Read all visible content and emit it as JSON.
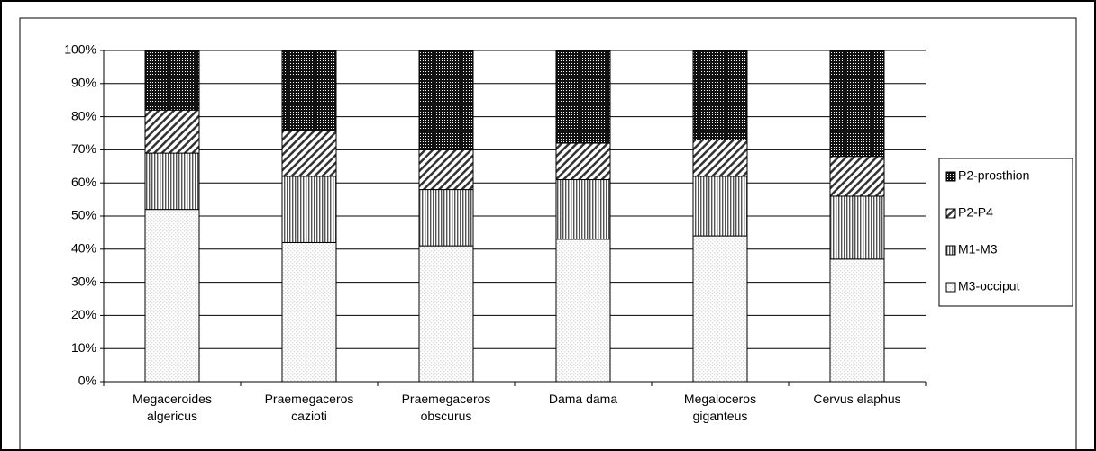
{
  "chart_data": {
    "type": "stacked_bar",
    "categories": [
      "Megaceroides algericus",
      "Praemegaceros cazioti",
      "Praemegaceros obscurus",
      "Dama dama",
      "Megaloceros giganteus",
      "Cervus elaphus"
    ],
    "series": [
      {
        "name": "M3-occiput",
        "color": "#d8d8d8",
        "pattern": "dots",
        "values": [
          52,
          42,
          41,
          43,
          44,
          37
        ]
      },
      {
        "name": "M1-M3",
        "color": "#555555",
        "pattern": "vertical",
        "values": [
          17,
          20,
          17,
          18,
          18,
          19
        ]
      },
      {
        "name": "P2-P4",
        "color": "#333333",
        "pattern": "diagonal",
        "values": [
          13,
          14,
          12,
          11,
          11,
          12
        ]
      },
      {
        "name": "P2-prosthion",
        "color": "#111111",
        "pattern": "dense",
        "values": [
          18,
          24,
          30,
          28,
          27,
          32
        ]
      }
    ],
    "ylim": [
      0,
      100
    ],
    "yticks": [
      {
        "value": 0,
        "label": "0%"
      },
      {
        "value": 10,
        "label": "10%"
      },
      {
        "value": 20,
        "label": "20%"
      },
      {
        "value": 30,
        "label": "30%"
      },
      {
        "value": 40,
        "label": "40%"
      },
      {
        "value": 50,
        "label": "50%"
      },
      {
        "value": 60,
        "label": "60%"
      },
      {
        "value": 70,
        "label": "70%"
      },
      {
        "value": 80,
        "label": "80%"
      },
      {
        "value": 90,
        "label": "90%"
      },
      {
        "value": 100,
        "label": "100%"
      }
    ],
    "grid": true,
    "legend": "right"
  }
}
